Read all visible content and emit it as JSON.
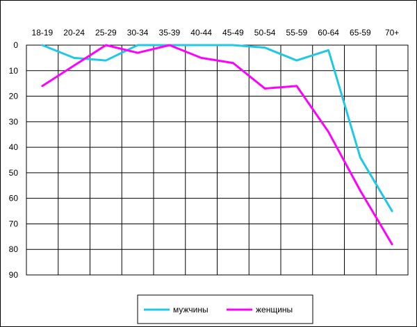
{
  "chart_data": {
    "type": "line",
    "categories": [
      "18-19",
      "20-24",
      "25-29",
      "30-34",
      "35-39",
      "40-44",
      "45-49",
      "50-54",
      "55-59",
      "60-64",
      "65-59",
      "70+"
    ],
    "y_ticks": [
      "0",
      "10",
      "20",
      "30",
      "40",
      "50",
      "60",
      "70",
      "80",
      "90"
    ],
    "ylim": [
      0,
      90
    ],
    "y_inverted": true,
    "grid": true,
    "legend_position": "bottom-right",
    "series": [
      {
        "name": "мужчины",
        "color": "#1ec8e6",
        "values": [
          0,
          5,
          6,
          0,
          0,
          0,
          0,
          1,
          6,
          2,
          44,
          65
        ]
      },
      {
        "name": "женщины",
        "color": "#ff00ff",
        "values": [
          16,
          8,
          0,
          3,
          0,
          5,
          7,
          17,
          16,
          34,
          57,
          78
        ]
      }
    ]
  }
}
